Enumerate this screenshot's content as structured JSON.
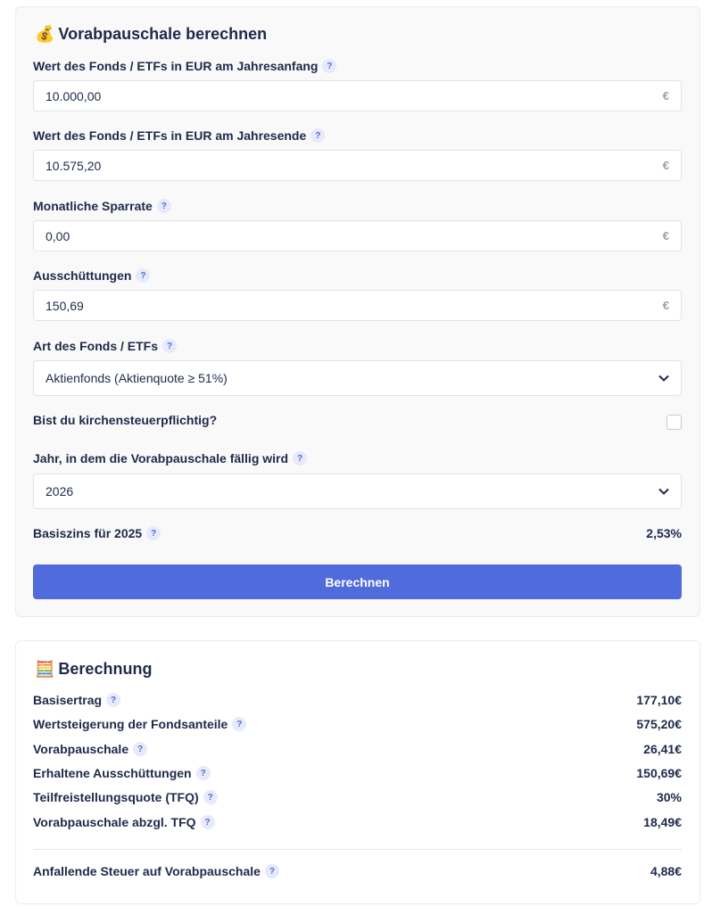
{
  "calculator": {
    "icon": "💰",
    "title": "Vorabpauschale berechnen",
    "help_icon": "?",
    "currency": "€",
    "fields": [
      {
        "label": "Wert des Fonds / ETFs in EUR am Jahresanfang",
        "value": "10.000,00"
      },
      {
        "label": "Wert des Fonds / ETFs in EUR am Jahresende",
        "value": "10.575,20"
      },
      {
        "label": "Monatliche Sparrate",
        "value": "0,00"
      },
      {
        "label": "Ausschüttungen",
        "value": "150,69"
      }
    ],
    "fund_type": {
      "label": "Art des Fonds / ETFs",
      "value": "Aktienfonds (Aktienquote ≥ 51%)"
    },
    "church_tax": {
      "label": "Bist du kirchensteuerpflichtig?"
    },
    "year": {
      "label": "Jahr, in dem die Vorabpauschale fällig wird",
      "value": "2026"
    },
    "base_rate": {
      "label": "Basiszins für 2025",
      "value": "2,53%"
    },
    "button": "Berechnen"
  },
  "results": {
    "icon": "🧮",
    "title": "Berechnung",
    "rows": [
      {
        "label": "Basisertrag",
        "value": "177,10€"
      },
      {
        "label": "Wertsteigerung der Fondsanteile",
        "value": "575,20€"
      },
      {
        "label": "Vorabpauschale",
        "value": "26,41€"
      },
      {
        "label": "Erhaltene Ausschüttungen",
        "value": "150,69€"
      },
      {
        "label": "Teilfreistellungsquote (TFQ)",
        "value": "30%"
      },
      {
        "label": "Vorabpauschale abzgl. TFQ",
        "value": "18,49€"
      }
    ],
    "total": {
      "label": "Anfallende Steuer auf Vorabpauschale",
      "value": "4,88€"
    }
  }
}
